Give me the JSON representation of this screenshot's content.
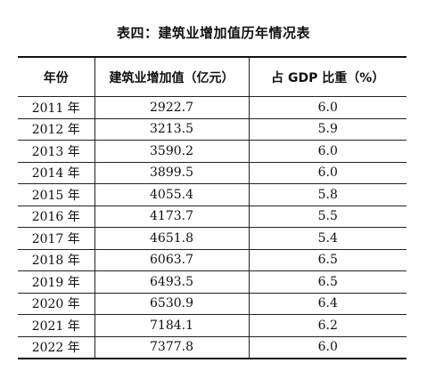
{
  "title": "表四：建筑业增加值历年情况表",
  "table": {
    "headers": [
      "年份",
      "建筑业增加值（亿元）",
      "占 GDP 比重（%）"
    ],
    "rows": [
      [
        "2011 年",
        "2922.7",
        "6.0"
      ],
      [
        "2012 年",
        "3213.5",
        "5.9"
      ],
      [
        "2013 年",
        "3590.2",
        "6.0"
      ],
      [
        "2014 年",
        "3899.5",
        "6.0"
      ],
      [
        "2015 年",
        "4055.4",
        "5.8"
      ],
      [
        "2016 年",
        "4173.7",
        "5.5"
      ],
      [
        "2017 年",
        "4651.8",
        "5.4"
      ],
      [
        "2018 年",
        "6063.7",
        "6.5"
      ],
      [
        "2019 年",
        "6493.5",
        "6.5"
      ],
      [
        "2020 年",
        "6530.9",
        "6.4"
      ],
      [
        "2021 年",
        "7184.1",
        "6.2"
      ],
      [
        "2022 年",
        "7377.8",
        "6.0"
      ]
    ]
  }
}
